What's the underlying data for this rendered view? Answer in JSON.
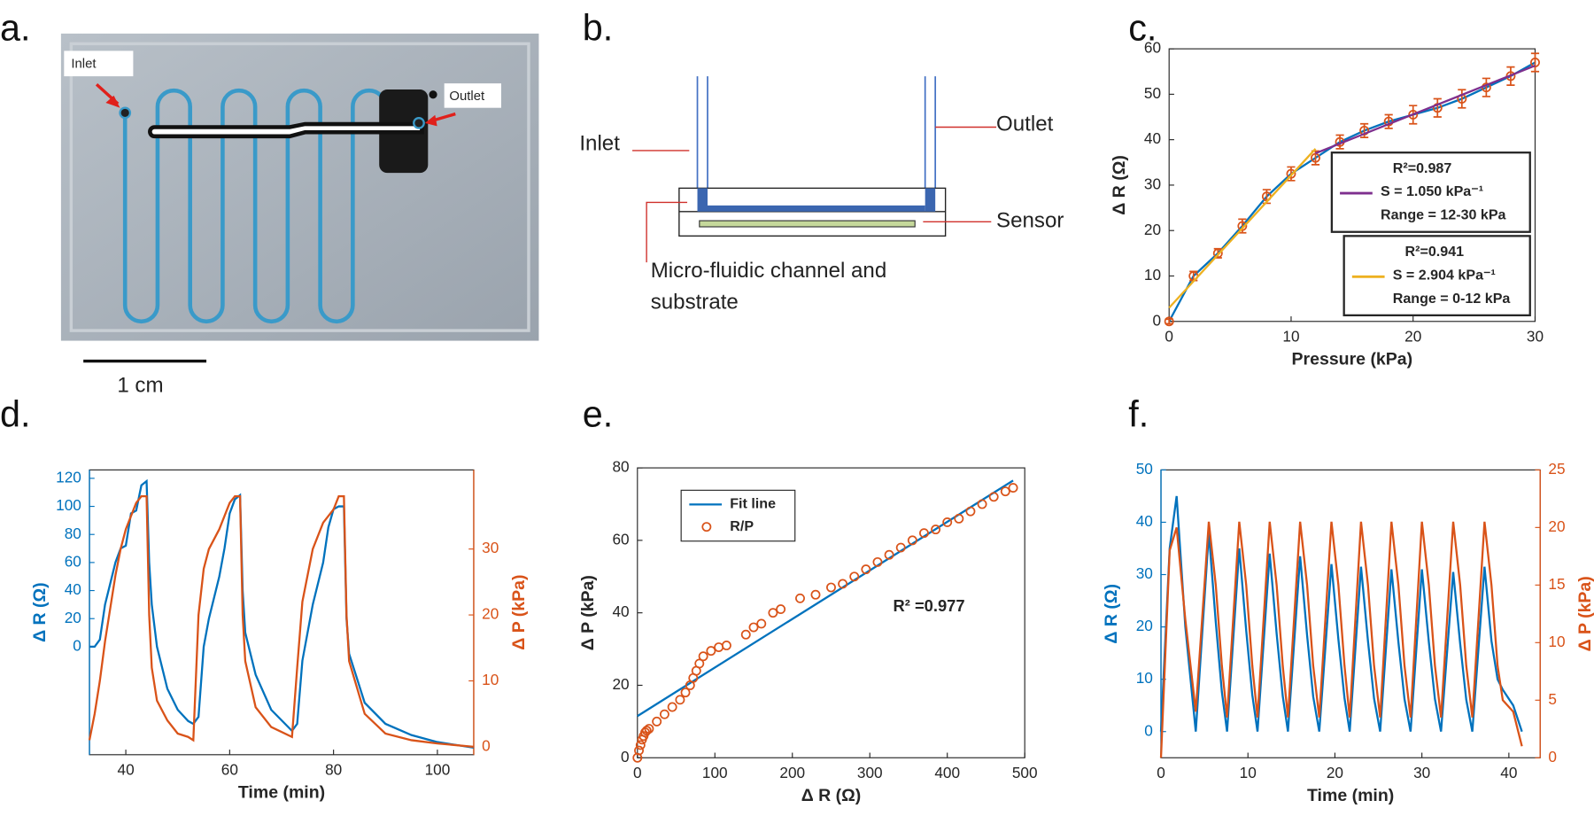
{
  "figure": {
    "a": {
      "panel_label": "a.",
      "inlet": "Inlet",
      "outlet": "Outlet",
      "scale_bar": "1 cm"
    },
    "b": {
      "panel_label": "b.",
      "inlet": "Inlet",
      "outlet": "Outlet",
      "sensor": "Sensor",
      "channel": [
        "Micro-fluidic channel and",
        "substrate"
      ]
    }
  },
  "chart_data": [
    {
      "type": "errorbar",
      "panel_label": "c.",
      "xlabel": "Pressure (kPa)",
      "ylabel": "Δ R (Ω)",
      "xlim": [
        0,
        30
      ],
      "ylim": [
        0,
        60
      ],
      "xticks": [
        0,
        10,
        20,
        30
      ],
      "yticks": [
        0,
        10,
        20,
        30,
        40,
        50,
        60
      ],
      "series": [
        {
          "color": "#d95319",
          "line_color": "#0072bd",
          "mode": "markers+line",
          "x": [
            0,
            2,
            4,
            6,
            8,
            10,
            12,
            14,
            16,
            18,
            20,
            22,
            24,
            26,
            28,
            30
          ],
          "values": [
            0,
            10,
            15,
            21,
            27.5,
            32.5,
            36,
            39.5,
            42,
            44,
            45.5,
            47,
            49,
            51.5,
            54,
            57
          ],
          "errors": [
            0.5,
            1,
            1,
            1.5,
            1.5,
            1.5,
            1.5,
            1.5,
            1.5,
            1.5,
            2,
            2,
            2,
            2,
            2,
            2
          ]
        },
        {
          "color": "#7e2f8e",
          "mode": "line",
          "x": [
            12,
            30
          ],
          "values": [
            37,
            56.3
          ],
          "legend": [
            "R²=0.987",
            "S = 1.050 kPa⁻¹",
            "Range = 12-30 kPa"
          ]
        },
        {
          "color": "#edb120",
          "mode": "line",
          "x": [
            0,
            12
          ],
          "values": [
            3,
            38
          ],
          "legend": [
            "R²=0.941",
            "S = 2.904 kPa⁻¹",
            "Range = 0-12 kPa"
          ]
        }
      ]
    },
    {
      "type": "line",
      "panel_label": "d.",
      "xlabel": "Time (min)",
      "ylabel": "Δ R (Ω)",
      "y2label": "Δ P (kPa)",
      "xlim": [
        33,
        107
      ],
      "ylim": [
        -77,
        126
      ],
      "y2lim": [
        -1.2,
        42
      ],
      "xticks": [
        40,
        60,
        80,
        100
      ],
      "yticks": [
        0,
        20,
        40,
        60,
        80,
        100,
        120
      ],
      "y2ticks": [
        0,
        10,
        20,
        30
      ],
      "ycolor": "#0072bd",
      "y2color": "#d95319",
      "x": [
        33,
        34,
        35,
        36,
        37,
        38,
        39,
        40,
        41,
        42,
        43,
        44,
        44.5,
        45,
        46,
        48,
        50,
        52,
        53,
        54,
        55,
        56,
        58,
        59,
        60,
        61,
        62,
        62.5,
        63,
        65,
        68,
        72,
        73,
        74,
        76,
        78,
        79,
        80,
        81,
        82,
        82.5,
        83,
        86,
        90,
        95,
        100,
        107
      ],
      "series": [
        {
          "color": "#0072bd",
          "mode": "line",
          "values": [
            0,
            0,
            5,
            30,
            45,
            60,
            70,
            72,
            95,
            97,
            115,
            118,
            60,
            30,
            0,
            -30,
            -45,
            -53,
            -55,
            -50,
            0,
            20,
            50,
            70,
            95,
            105,
            108,
            40,
            10,
            -20,
            -45,
            -60,
            -55,
            -10,
            30,
            60,
            85,
            98,
            100,
            100,
            20,
            -5,
            -40,
            -55,
            -63,
            -68,
            -72
          ]
        },
        {
          "color": "#d95319",
          "mode": "line",
          "axis": "y2",
          "values": [
            1,
            5,
            10,
            16,
            21,
            26,
            30,
            33,
            35,
            37,
            38,
            38,
            20,
            12,
            7,
            4,
            2,
            1.5,
            1,
            20,
            27,
            30,
            33,
            35,
            37,
            38,
            38,
            20,
            13,
            6,
            3,
            1.5,
            12,
            22,
            30,
            34,
            35,
            36,
            38,
            38,
            20,
            13,
            5,
            2,
            1,
            0.5,
            0
          ]
        }
      ]
    },
    {
      "type": "scatter",
      "panel_label": "e.",
      "xlabel": "Δ R (Ω)",
      "ylabel": "Δ P (kPa)",
      "xlim": [
        0,
        500
      ],
      "ylim": [
        0,
        80
      ],
      "xticks": [
        0,
        100,
        200,
        300,
        400,
        500
      ],
      "yticks": [
        0,
        20,
        40,
        60,
        80
      ],
      "legend": "upper left",
      "annotation": "R² =0.977",
      "series": [
        {
          "name": "Fit line",
          "color": "#0072bd",
          "mode": "line",
          "x": [
            0,
            485
          ],
          "values": [
            11.5,
            76.5
          ]
        },
        {
          "name": "R/P",
          "color": "#d95319",
          "mode": "markers",
          "x": [
            0,
            2,
            4,
            6,
            8,
            10,
            12,
            15,
            25,
            35,
            45,
            55,
            62,
            68,
            72,
            76,
            80,
            85,
            95,
            105,
            115,
            140,
            150,
            160,
            175,
            185,
            210,
            230,
            250,
            265,
            280,
            295,
            310,
            325,
            340,
            355,
            370,
            385,
            400,
            415,
            430,
            445,
            460,
            475,
            485
          ],
          "values": [
            0,
            2,
            3.5,
            5,
            6,
            7,
            7.5,
            8,
            10,
            12,
            14,
            16,
            18,
            20,
            22,
            24,
            26,
            28,
            29.5,
            30.5,
            31,
            34,
            36,
            37,
            40,
            41,
            44,
            45,
            47,
            48,
            50,
            52,
            54,
            56,
            58,
            60,
            62,
            63,
            65,
            66,
            68,
            70,
            72,
            73.5,
            74.5
          ]
        }
      ]
    },
    {
      "type": "line",
      "panel_label": "f.",
      "xlabel": "Time (min)",
      "ylabel": "Δ R (Ω)",
      "y2label": "Δ P (kPa)",
      "xlim": [
        0,
        43.6
      ],
      "ylim": [
        -5,
        50
      ],
      "y2lim": [
        0,
        25
      ],
      "xticks": [
        0,
        10,
        20,
        30,
        40
      ],
      "yticks": [
        0,
        10,
        20,
        30,
        40,
        50
      ],
      "y2ticks": [
        0,
        5,
        10,
        15,
        20,
        25
      ],
      "ycolor": "#0072bd",
      "y2color": "#d95319",
      "x": [
        0,
        1,
        1.8,
        2.8,
        4,
        5.5,
        6.3,
        7,
        7.6,
        9,
        9.8,
        10.5,
        11.1,
        12.5,
        13.3,
        14,
        14.6,
        16,
        16.8,
        17.5,
        18.2,
        19.6,
        20.4,
        21.1,
        21.7,
        23,
        23.8,
        24.5,
        25.2,
        26.5,
        27.3,
        28,
        28.7,
        30,
        30.8,
        31.5,
        32.2,
        33.6,
        34.4,
        35.1,
        35.8,
        37.2,
        38,
        38.7,
        39.3,
        40.5,
        41.5
      ],
      "series": [
        {
          "color": "#0072bd",
          "mode": "line",
          "values": [
            0,
            35,
            45,
            20,
            0,
            38,
            20.9,
            7.6,
            0,
            35,
            19.3,
            7,
            0,
            34,
            18.7,
            6.8,
            0,
            33.5,
            18.4,
            6.7,
            0,
            32,
            17.6,
            6.4,
            0,
            31.5,
            17.3,
            6.3,
            0,
            31,
            17.1,
            6.2,
            0,
            31,
            17.1,
            6.2,
            0,
            30.5,
            16.8,
            6.1,
            0,
            31.5,
            17.3,
            10,
            8,
            5,
            0
          ]
        },
        {
          "color": "#d95319",
          "mode": "line",
          "axis": "y2",
          "values": [
            0,
            18,
            20,
            12,
            4,
            20.5,
            15,
            8,
            3.5,
            20.5,
            15,
            8,
            3.5,
            20.5,
            15,
            8,
            3.5,
            20.5,
            15,
            8,
            3.5,
            20.5,
            15,
            8,
            3.5,
            20.5,
            15,
            8,
            3.5,
            20.5,
            15,
            8,
            3.5,
            20.5,
            15,
            8,
            3.5,
            20.5,
            15,
            8,
            3.5,
            20.5,
            15,
            8,
            5,
            4,
            1
          ]
        }
      ]
    }
  ]
}
